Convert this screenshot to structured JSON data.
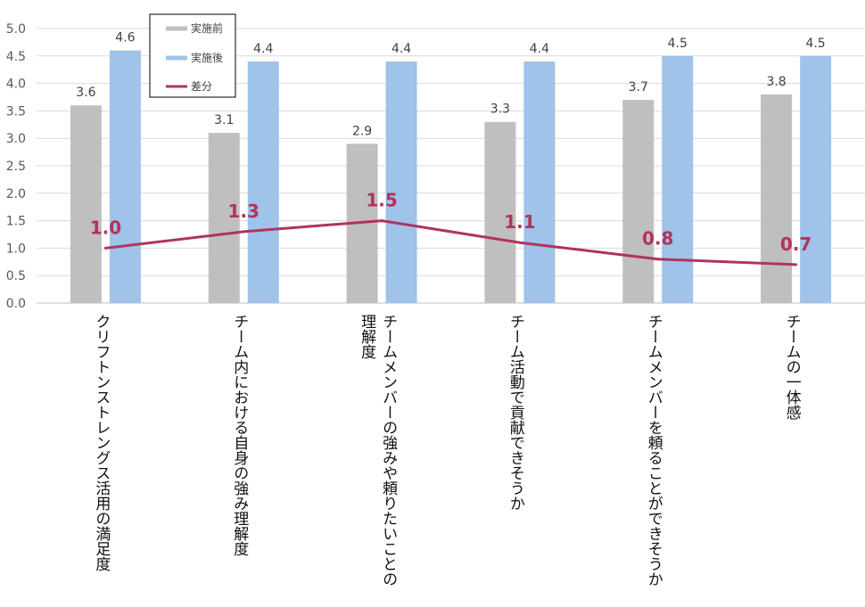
{
  "chart_data": {
    "type": "bar",
    "categories": [
      "クリフトンストレングス活用の満足度",
      "チーム内における自身の強み理解度",
      "チームメンバーの強みや頼りたいことの\n理解度",
      "チーム活動で貢献できそうか",
      "チームメンバーを頼ることができそうか",
      "チームの一体感"
    ],
    "series": [
      {
        "name": "実施前",
        "type": "bar",
        "color": "#bfbfbf",
        "values": [
          3.6,
          3.1,
          2.9,
          3.3,
          3.7,
          3.8
        ],
        "labels": [
          "3.6",
          "3.1",
          "2.9",
          "3.3",
          "3.7",
          "3.8"
        ]
      },
      {
        "name": "実施後",
        "type": "bar",
        "color": "#9fc3e9",
        "values": [
          4.6,
          4.4,
          4.4,
          4.4,
          4.5,
          4.5
        ],
        "labels": [
          "4.6",
          "4.4",
          "4.4",
          "4.4",
          "4.5",
          "4.5"
        ]
      },
      {
        "name": "差分",
        "type": "line",
        "color": "#b0345c",
        "values": [
          1.0,
          1.3,
          1.5,
          1.1,
          0.8,
          0.7
        ],
        "labels": [
          "1.0",
          "1.3",
          "1.5",
          "1.1",
          "0.8",
          "0.7"
        ]
      }
    ],
    "y_ticks": [
      "0.0",
      "0.5",
      "1.0",
      "1.5",
      "2.0",
      "2.5",
      "3.0",
      "3.5",
      "4.0",
      "4.5",
      "5.0"
    ],
    "ylim": [
      0,
      5
    ],
    "grid": true,
    "legend_position": "top-left"
  }
}
